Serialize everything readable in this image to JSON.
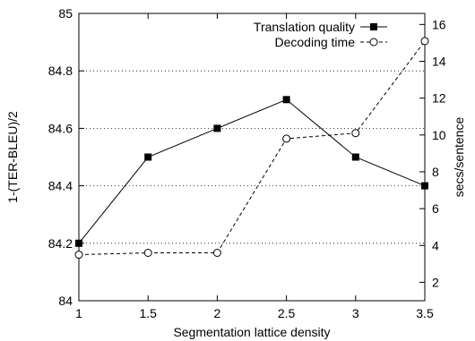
{
  "chart_data": {
    "type": "line",
    "title": "",
    "xlabel": "Segmentation lattice density",
    "ylabel": "1-(TER-BLEU)/2",
    "y2label": "secs/sentence",
    "x": [
      1,
      1.5,
      2,
      2.5,
      3,
      3.5
    ],
    "xlim": [
      1,
      3.5
    ],
    "ylim": [
      84,
      85
    ],
    "y2lim": [
      1,
      16.6
    ],
    "xticks": [
      "1",
      "1.5",
      "2",
      "2.5",
      "3",
      "3.5"
    ],
    "yticks": [
      "84",
      "84.2",
      "84.4",
      "84.6",
      "84.8",
      "85"
    ],
    "y2ticks": [
      "2",
      "4",
      "6",
      "8",
      "10",
      "12",
      "14",
      "16"
    ],
    "grid": "horizontal dotted",
    "legend_position": "top-right",
    "series": [
      {
        "name": "Translation quality",
        "axis": "left",
        "style": "solid",
        "marker": "filled-square",
        "values": [
          84.2,
          84.5,
          84.6,
          84.7,
          84.5,
          84.4
        ]
      },
      {
        "name": "Decoding time",
        "axis": "right",
        "style": "dashed",
        "marker": "open-circle",
        "values": [
          3.5,
          3.6,
          3.6,
          9.8,
          10.1,
          15.1
        ]
      }
    ]
  }
}
